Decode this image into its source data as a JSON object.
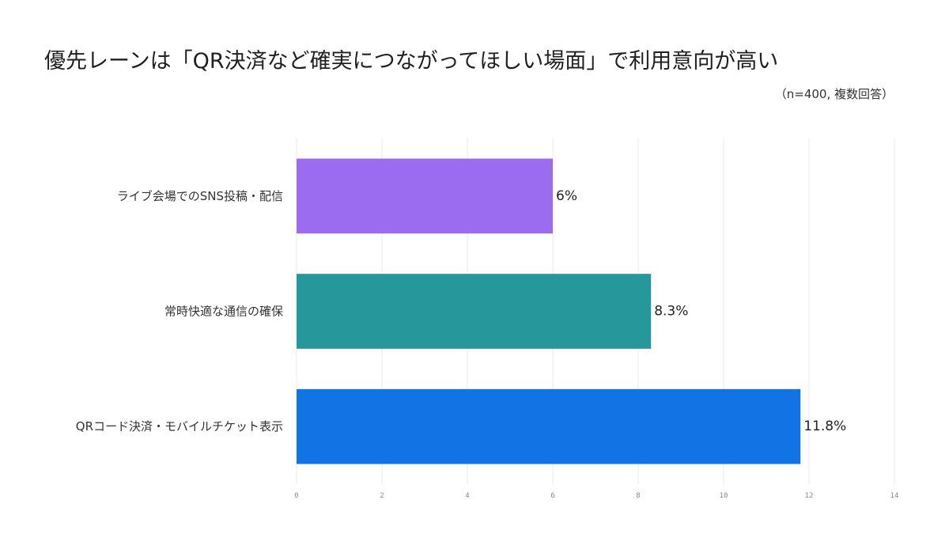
{
  "title": "優先レーンは「QR決済など確実につながってほしい場面」で利用意向が高い",
  "subtitle": "（n=400, 複数回答）",
  "chart_data": {
    "type": "bar",
    "orientation": "horizontal",
    "categories": [
      "ライブ会場でのSNS投稿・配信",
      "常時快適な通信の確保",
      "QRコード決済・モバイルチケット表示"
    ],
    "values": [
      6,
      8.3,
      11.8
    ],
    "value_labels": [
      "6%",
      "8.3%",
      "11.8%"
    ],
    "colors": [
      "#9b6cf0",
      "#26979a",
      "#1274e4"
    ],
    "xlim": [
      0,
      14
    ],
    "ticks": [
      0,
      2,
      4,
      6,
      8,
      10,
      12,
      14
    ],
    "tick_labels": [
      "0",
      "2",
      "4",
      "6",
      "8",
      "10",
      "12",
      "14"
    ],
    "grid": true,
    "legend": "none"
  }
}
